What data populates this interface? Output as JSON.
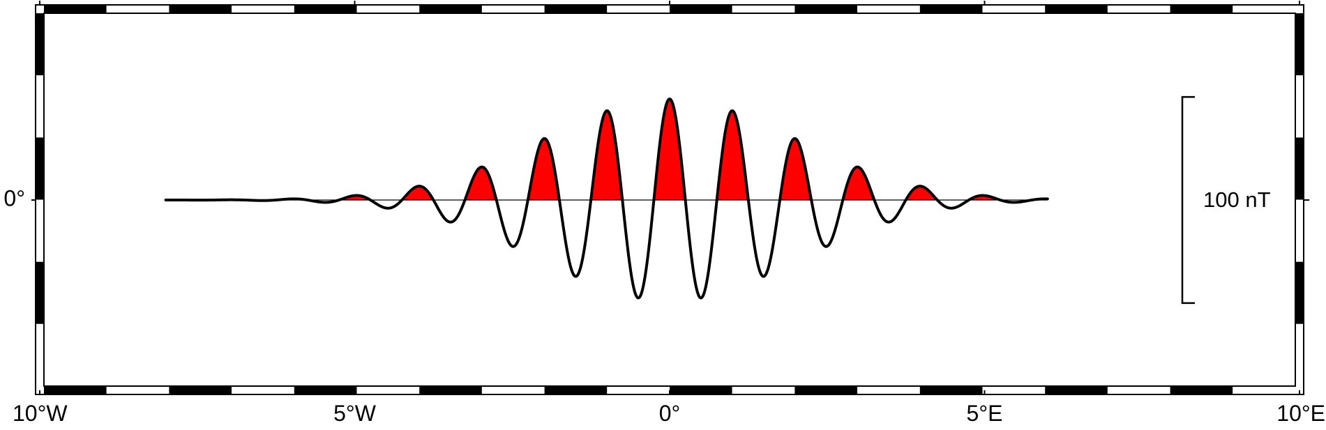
{
  "chart_data": {
    "type": "line",
    "title": "",
    "xlabel": "",
    "ylabel": "",
    "xlim": [
      -10,
      10
    ],
    "ylim": [
      -1.5,
      1.5
    ],
    "x_ticks": [
      {
        "value": -10,
        "label": "10°W"
      },
      {
        "value": -5,
        "label": "5°W"
      },
      {
        "value": 0,
        "label": "0°"
      },
      {
        "value": 5,
        "label": "5°E"
      },
      {
        "value": 10,
        "label": "10°E"
      }
    ],
    "y_ticks": [
      {
        "value": 0,
        "label": "0°"
      }
    ],
    "frame": "checkerboard",
    "fill_positive_color": "#ff0000",
    "line_color": "#000000",
    "wiggle": {
      "x_range": [
        -8,
        6
      ],
      "peak_x": 0,
      "peak_amplitude": 100,
      "period": 1,
      "envelope_sigma": 2,
      "unit": "nT"
    },
    "scale_bar": {
      "value": 100,
      "label": "100 nT",
      "position": "right"
    }
  }
}
